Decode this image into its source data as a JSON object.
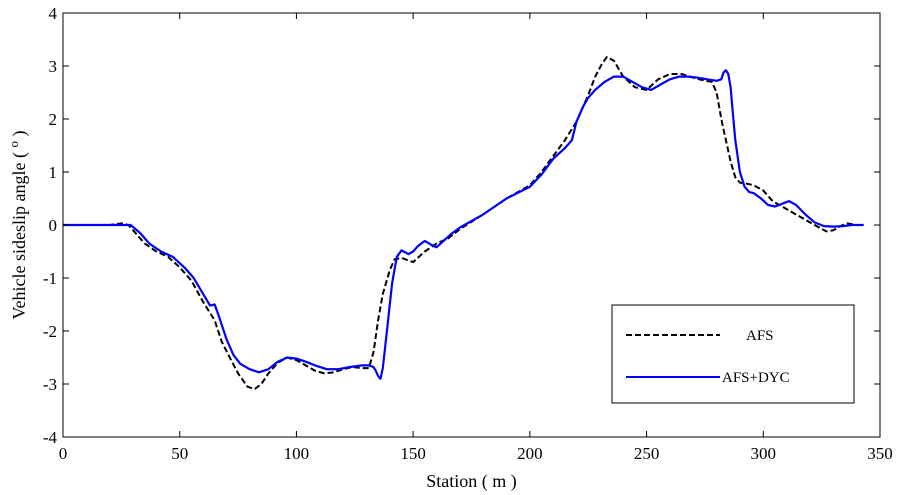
{
  "chart_data": {
    "type": "line",
    "xlabel": "Station ( m )",
    "ylabel": "Vehicle sideslip angle ( o )",
    "ylabel_parts": {
      "prefix": "Vehicle sideslip angle ( ",
      "unit": "o",
      "suffix": " )"
    },
    "xlim": [
      0,
      350
    ],
    "ylim": [
      -4,
      4
    ],
    "xticks": [
      0,
      50,
      100,
      150,
      200,
      250,
      300,
      350
    ],
    "yticks": [
      -4,
      -3,
      -2,
      -1,
      0,
      1,
      2,
      3,
      4
    ],
    "grid": false,
    "legend_position": "lower-right",
    "series": [
      {
        "name": "AFS",
        "color": "#000000",
        "style": "dashed",
        "x": [
          0,
          20,
          25,
          28,
          31,
          35,
          40,
          45,
          50,
          55,
          60,
          65,
          68,
          72,
          75,
          79,
          82,
          85,
          88,
          92,
          96,
          100,
          104,
          108,
          112,
          116,
          120,
          124,
          128,
          131,
          133,
          135,
          137,
          140,
          142,
          145,
          150,
          155,
          160,
          165,
          170,
          180,
          190,
          200,
          205,
          210,
          215,
          220,
          225,
          228,
          231,
          233,
          236,
          240,
          245,
          250,
          255,
          260,
          265,
          270,
          275,
          278,
          280,
          282,
          284,
          286,
          288,
          290,
          293,
          296,
          300,
          304,
          308,
          312,
          316,
          320,
          324,
          327,
          330,
          333,
          336,
          340,
          343
        ],
        "y": [
          0,
          0,
          0.03,
          0,
          -0.15,
          -0.35,
          -0.5,
          -0.6,
          -0.8,
          -1.05,
          -1.45,
          -1.8,
          -2.2,
          -2.55,
          -2.8,
          -3.05,
          -3.1,
          -3.0,
          -2.8,
          -2.6,
          -2.5,
          -2.55,
          -2.65,
          -2.75,
          -2.8,
          -2.78,
          -2.72,
          -2.68,
          -2.7,
          -2.7,
          -2.4,
          -1.8,
          -1.3,
          -0.85,
          -0.65,
          -0.62,
          -0.7,
          -0.5,
          -0.35,
          -0.25,
          -0.08,
          0.2,
          0.5,
          0.75,
          1.0,
          1.3,
          1.6,
          1.95,
          2.45,
          2.8,
          3.05,
          3.17,
          3.1,
          2.8,
          2.6,
          2.55,
          2.75,
          2.85,
          2.85,
          2.78,
          2.72,
          2.7,
          2.5,
          2.0,
          1.6,
          1.2,
          0.9,
          0.8,
          0.78,
          0.75,
          0.65,
          0.45,
          0.35,
          0.25,
          0.15,
          0.05,
          -0.05,
          -0.12,
          -0.1,
          -0.02,
          0.03,
          0.0,
          0.0
        ]
      },
      {
        "name": "AFS+DYC",
        "color": "#0000ff",
        "style": "solid",
        "x": [
          0,
          20,
          25,
          29,
          33,
          37,
          42,
          47,
          52,
          56,
          60,
          63,
          65,
          67,
          70,
          73,
          76,
          80,
          84,
          88,
          92,
          96,
          100,
          104,
          108,
          113,
          118,
          123,
          128,
          131,
          133,
          134,
          135,
          136,
          137,
          139,
          141,
          143,
          145,
          148,
          150,
          152,
          155,
          158,
          160,
          163,
          166,
          170,
          180,
          190,
          200,
          205,
          210,
          215,
          218,
          220,
          223,
          225,
          228,
          232,
          236,
          240,
          244,
          248,
          252,
          256,
          260,
          264,
          268,
          272,
          276,
          280,
          282,
          283,
          284,
          285,
          286,
          287,
          288,
          290,
          292,
          294,
          296,
          299,
          302,
          305,
          308,
          311,
          314,
          318,
          322,
          326,
          330,
          334,
          338,
          343
        ],
        "y": [
          0,
          0,
          0,
          0,
          -0.15,
          -0.35,
          -0.5,
          -0.6,
          -0.8,
          -1.0,
          -1.3,
          -1.52,
          -1.5,
          -1.75,
          -2.15,
          -2.45,
          -2.62,
          -2.72,
          -2.78,
          -2.72,
          -2.58,
          -2.5,
          -2.52,
          -2.58,
          -2.65,
          -2.72,
          -2.72,
          -2.68,
          -2.65,
          -2.65,
          -2.68,
          -2.75,
          -2.85,
          -2.9,
          -2.7,
          -1.9,
          -1.1,
          -0.6,
          -0.48,
          -0.55,
          -0.5,
          -0.4,
          -0.3,
          -0.38,
          -0.42,
          -0.3,
          -0.18,
          -0.05,
          0.2,
          0.5,
          0.72,
          0.95,
          1.25,
          1.45,
          1.6,
          1.95,
          2.25,
          2.4,
          2.55,
          2.7,
          2.8,
          2.8,
          2.7,
          2.6,
          2.55,
          2.65,
          2.75,
          2.8,
          2.8,
          2.78,
          2.75,
          2.72,
          2.75,
          2.88,
          2.92,
          2.85,
          2.6,
          2.1,
          1.6,
          1.0,
          0.72,
          0.62,
          0.6,
          0.5,
          0.38,
          0.35,
          0.4,
          0.45,
          0.38,
          0.2,
          0.05,
          -0.02,
          -0.03,
          -0.02,
          0.0,
          0.0
        ]
      }
    ]
  }
}
